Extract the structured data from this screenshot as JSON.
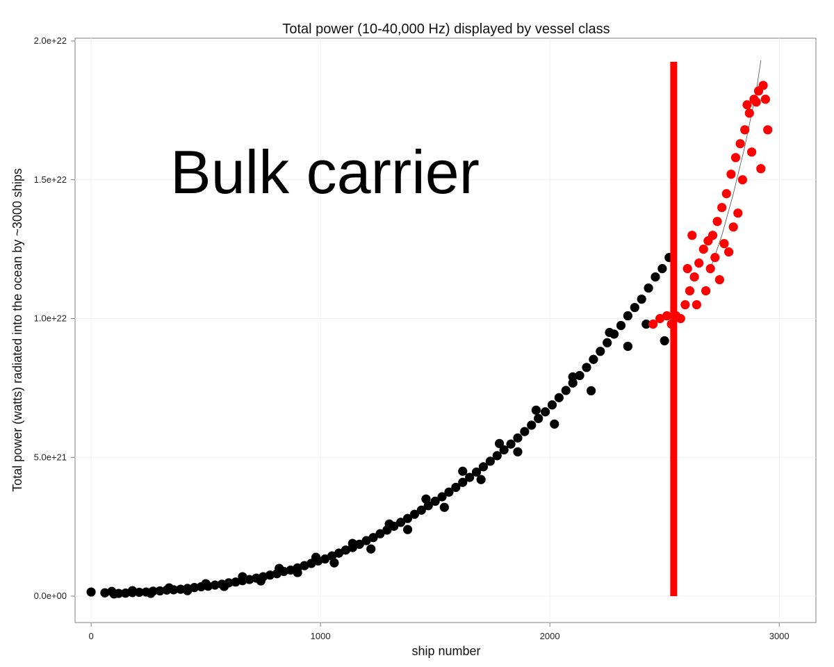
{
  "chart_data": {
    "type": "scatter",
    "title": "Total power (10-40,000 Hz) displayed by vessel class",
    "xlabel": "ship number",
    "ylabel": "Total power (watts) radiated into the ocean by ~3000 ships",
    "xlim": [
      -70,
      3160
    ],
    "ylim": [
      -9.5e+20,
      2.01e+22
    ],
    "x_ticks": [
      0,
      1000,
      2000,
      3000
    ],
    "x_tick_labels": [
      "0",
      "1000",
      "2000",
      "3000"
    ],
    "y_ticks": [
      0,
      5e+21,
      1e+22,
      1.5e+22,
      2e+22
    ],
    "y_tick_labels": [
      "0.0e+00",
      "5.0e+21",
      "1.0e+22",
      "1.5e+22",
      "2.0e+22"
    ],
    "grid": true,
    "annotation": "Bulk carrier",
    "colors": {
      "background": "#ffffff",
      "grid": "#f0f0f0",
      "axis": "#7f7f7f",
      "black_points": "#000000",
      "red_points": "#ff0000",
      "highlight_bar": "#ff0000",
      "trend_line": "#4d4d4d"
    },
    "highlight_bar": {
      "x": 2540,
      "y_start": 0,
      "y_end": 1.925e+22
    },
    "trend_line": [
      [
        2700,
        1.18e+22
      ],
      [
        2750,
        1.3e+22
      ],
      [
        2800,
        1.45e+22
      ],
      [
        2850,
        1.62e+22
      ],
      [
        2900,
        1.82e+22
      ],
      [
        2920,
        1.93e+22
      ]
    ],
    "series": [
      {
        "color_key": "black_points",
        "points": [
          [
            0,
            1.5e+20
          ],
          [
            60,
            1.2e+20
          ],
          [
            90,
            1.7e+20
          ],
          [
            120,
            1e+20
          ],
          [
            150,
            1.1e+20
          ],
          [
            180,
            1.3e+20
          ],
          [
            210,
            1.4e+20
          ],
          [
            240,
            1.5e+20
          ],
          [
            270,
            1.8e+20
          ],
          [
            300,
            1.9e+20
          ],
          [
            330,
            2.2e+20
          ],
          [
            360,
            2.3e+20
          ],
          [
            390,
            2.5e+20
          ],
          [
            420,
            2.8e+20
          ],
          [
            450,
            3.1e+20
          ],
          [
            480,
            3.4e+20
          ],
          [
            510,
            3.6e+20
          ],
          [
            540,
            4e+20
          ],
          [
            570,
            4.3e+20
          ],
          [
            600,
            4.8e+20
          ],
          [
            630,
            5.1e+20
          ],
          [
            660,
            5.6e+20
          ],
          [
            690,
            6e+20
          ],
          [
            720,
            6.5e+20
          ],
          [
            750,
            7e+20
          ],
          [
            780,
            7.6e+20
          ],
          [
            810,
            8.1e+20
          ],
          [
            840,
            8.9e+20
          ],
          [
            870,
            9.4e+20
          ],
          [
            900,
            1.02e+21
          ],
          [
            930,
            1.1e+21
          ],
          [
            960,
            1.18e+21
          ],
          [
            990,
            1.27e+21
          ],
          [
            1020,
            1.34e+21
          ],
          [
            1050,
            1.45e+21
          ],
          [
            1080,
            1.55e+21
          ],
          [
            1110,
            1.66e+21
          ],
          [
            1140,
            1.75e+21
          ],
          [
            1170,
            1.87e+21
          ],
          [
            1200,
            2e+21
          ],
          [
            1230,
            2.11e+21
          ],
          [
            1260,
            2.25e+21
          ],
          [
            1290,
            2.38e+21
          ],
          [
            1320,
            2.52e+21
          ],
          [
            1350,
            2.66e+21
          ],
          [
            1380,
            2.8e+21
          ],
          [
            1410,
            2.95e+21
          ],
          [
            1440,
            3.1e+21
          ],
          [
            1470,
            3.26e+21
          ],
          [
            1500,
            3.42e+21
          ],
          [
            1530,
            3.58e+21
          ],
          [
            1560,
            3.75e+21
          ],
          [
            1590,
            3.92e+21
          ],
          [
            1620,
            4.1e+21
          ],
          [
            1650,
            4.28e+21
          ],
          [
            1680,
            4.47e+21
          ],
          [
            1710,
            4.66e+21
          ],
          [
            1740,
            4.86e+21
          ],
          [
            1770,
            5.06e+21
          ],
          [
            1800,
            5.27e+21
          ],
          [
            1830,
            5.48e+21
          ],
          [
            1860,
            5.7e+21
          ],
          [
            1890,
            5.93e+21
          ],
          [
            1920,
            6.16e+21
          ],
          [
            1950,
            6.4e+21
          ],
          [
            1980,
            6.64e+21
          ],
          [
            2010,
            6.89e+21
          ],
          [
            2040,
            7.15e+21
          ],
          [
            2070,
            7.41e+21
          ],
          [
            2100,
            7.68e+21
          ],
          [
            2130,
            7.95e+21
          ],
          [
            2160,
            8.24e+21
          ],
          [
            2190,
            8.53e+21
          ],
          [
            2220,
            8.82e+21
          ],
          [
            2250,
            9.13e+21
          ],
          [
            2280,
            9.44e+21
          ],
          [
            2310,
            9.75e+21
          ],
          [
            2340,
            1.01e+22
          ],
          [
            2370,
            1.04e+22
          ],
          [
            2400,
            1.07e+22
          ],
          [
            2430,
            1.11e+22
          ],
          [
            2460,
            1.15e+22
          ],
          [
            2490,
            1.18e+22
          ],
          [
            2520,
            1.22e+22
          ],
          [
            100,
            8e+19
          ],
          [
            180,
            2e+20
          ],
          [
            260,
            1e+20
          ],
          [
            340,
            3e+20
          ],
          [
            420,
            2e+20
          ],
          [
            500,
            4.5e+20
          ],
          [
            580,
            3.5e+20
          ],
          [
            660,
            7e+20
          ],
          [
            740,
            5.5e+20
          ],
          [
            820,
            1e+21
          ],
          [
            900,
            8.5e+20
          ],
          [
            980,
            1.4e+21
          ],
          [
            1060,
            1.2e+21
          ],
          [
            1140,
            1.9e+21
          ],
          [
            1220,
            1.7e+21
          ],
          [
            1300,
            2.6e+21
          ],
          [
            1380,
            2.4e+21
          ],
          [
            1460,
            3.5e+21
          ],
          [
            1540,
            3.2e+21
          ],
          [
            1620,
            4.5e+21
          ],
          [
            1700,
            4.2e+21
          ],
          [
            1780,
            5.5e+21
          ],
          [
            1860,
            5.2e+21
          ],
          [
            1940,
            6.7e+21
          ],
          [
            2020,
            6.2e+21
          ],
          [
            2100,
            7.9e+21
          ],
          [
            2180,
            7.4e+21
          ],
          [
            2260,
            9.5e+21
          ],
          [
            2340,
            9e+21
          ],
          [
            2420,
            9.8e+21
          ],
          [
            2500,
            9.2e+21
          ]
        ]
      },
      {
        "color_key": "red_points",
        "points": [
          [
            2450,
            9.8e+21
          ],
          [
            2480,
            1e+22
          ],
          [
            2510,
            1.01e+22
          ],
          [
            2530,
            9.8e+21
          ],
          [
            2550,
            1.01e+22
          ],
          [
            2570,
            1e+22
          ],
          [
            2590,
            1.05e+22
          ],
          [
            2610,
            1.1e+22
          ],
          [
            2630,
            1.15e+22
          ],
          [
            2650,
            1.2e+22
          ],
          [
            2670,
            1.25e+22
          ],
          [
            2690,
            1.28e+22
          ],
          [
            2710,
            1.3e+22
          ],
          [
            2730,
            1.35e+22
          ],
          [
            2750,
            1.4e+22
          ],
          [
            2770,
            1.45e+22
          ],
          [
            2790,
            1.52e+22
          ],
          [
            2810,
            1.58e+22
          ],
          [
            2830,
            1.63e+22
          ],
          [
            2850,
            1.68e+22
          ],
          [
            2870,
            1.74e+22
          ],
          [
            2890,
            1.79e+22
          ],
          [
            2910,
            1.82e+22
          ],
          [
            2930,
            1.84e+22
          ],
          [
            2950,
            1.68e+22
          ],
          [
            2620,
            1.3e+22
          ],
          [
            2680,
            1.1e+22
          ],
          [
            2720,
            1.22e+22
          ],
          [
            2760,
            1.27e+22
          ],
          [
            2800,
            1.33e+22
          ],
          [
            2840,
            1.5e+22
          ],
          [
            2880,
            1.6e+22
          ],
          [
            2920,
            1.54e+22
          ],
          [
            2940,
            1.79e+22
          ],
          [
            2600,
            1.18e+22
          ],
          [
            2640,
            1.05e+22
          ],
          [
            2700,
            1.18e+22
          ],
          [
            2740,
            1.14e+22
          ],
          [
            2780,
            1.24e+22
          ],
          [
            2820,
            1.38e+22
          ],
          [
            2860,
            1.77e+22
          ],
          [
            2900,
            1.78e+22
          ]
        ]
      }
    ]
  }
}
